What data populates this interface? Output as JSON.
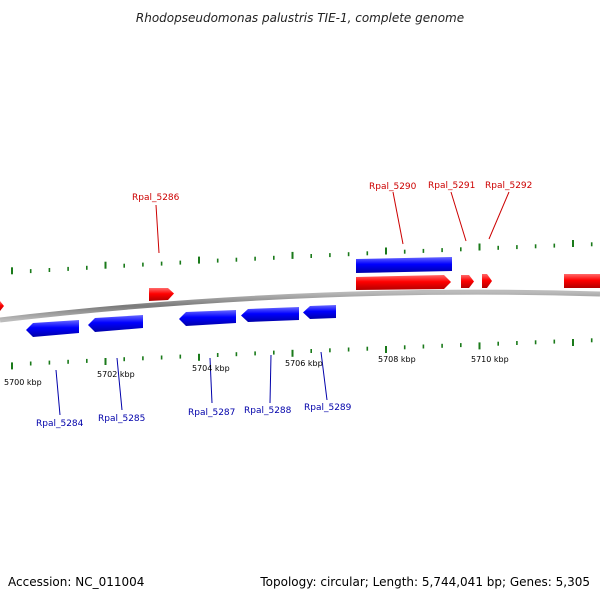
{
  "title": "Rhodopseudomonas palustris TIE-1, complete genome",
  "footer": {
    "accession": "Accession: NC_011004",
    "topology": "Topology: circular; Length: 5,744,041 bp; Genes: 5,305"
  },
  "colors": {
    "forward_gene": "#ff0000",
    "reverse_gene": "#0000ff",
    "forward_label": "#cc0000",
    "reverse_label": "#0000aa",
    "tick": "#1a7a1a",
    "backbone": "#888888"
  },
  "scale_labels": [
    "5700 kbp",
    "5702 kbp",
    "5704 kbp",
    "5706 kbp",
    "5708 kbp",
    "5710 kbp"
  ],
  "gene_labels": {
    "top": [
      "Rpal_5286",
      "Rpal_5290",
      "Rpal_5291",
      "Rpal_5292"
    ],
    "bottom": [
      "Rpal_5284",
      "Rpal_5285",
      "Rpal_5287",
      "Rpal_5288",
      "Rpal_5289"
    ]
  }
}
